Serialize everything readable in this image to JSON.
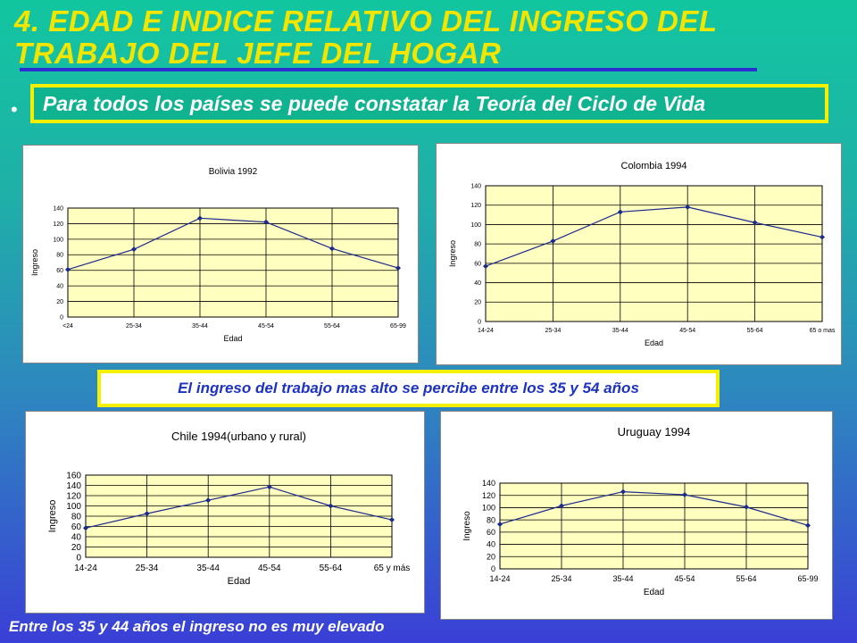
{
  "slide": {
    "title": "4. EDAD E INDICE RELATIVO DEL INGRESO DEL TRABAJO DEL JEFE DEL HOGAR",
    "bullet": "•",
    "banner": "Para todos los países se puede constatar la Teoría del Ciclo de Vida",
    "callout": "El  ingreso del trabajo mas alto se percibe entre los 35 y 54 años",
    "footer": "Entre los 35 y 44 años el ingreso no es muy elevado"
  },
  "chart_data": [
    {
      "type": "line",
      "title": "Bolivia 1992",
      "xlabel": "Edad",
      "ylabel": "Ingreso",
      "categories": [
        "<24",
        "25-34",
        "35-44",
        "45-54",
        "55-64",
        "65-99"
      ],
      "values": [
        61,
        87,
        127,
        122,
        88,
        63
      ],
      "ylim": [
        0,
        140
      ],
      "yticks": [
        0,
        20,
        40,
        60,
        80,
        100,
        120,
        140
      ],
      "grid": true
    },
    {
      "type": "line",
      "title": "Colombia 1994",
      "xlabel": "Edad",
      "ylabel": "Ingreso",
      "categories": [
        "14-24",
        "25-34",
        "35-44",
        "45-54",
        "55-64",
        "65 o mas"
      ],
      "values": [
        57,
        83,
        113,
        118,
        102,
        87
      ],
      "ylim": [
        0,
        140
      ],
      "yticks": [
        0,
        20,
        40,
        60,
        80,
        100,
        120,
        140
      ],
      "grid": true
    },
    {
      "type": "line",
      "title": "Chile 1994(urbano y rural)",
      "xlabel": "Edad",
      "ylabel": "Ingreso",
      "categories": [
        "14-24",
        "25-34",
        "35-44",
        "45-54",
        "55-64",
        "65 y más"
      ],
      "values": [
        57,
        85,
        111,
        137,
        100,
        73
      ],
      "ylim": [
        0,
        160
      ],
      "yticks": [
        0,
        20,
        40,
        60,
        80,
        100,
        120,
        140,
        160
      ],
      "grid": true
    },
    {
      "type": "line",
      "title": "Uruguay 1994",
      "xlabel": "Edad",
      "ylabel": "Ingreso",
      "categories": [
        "14-24",
        "25-34",
        "35-44",
        "45-54",
        "55-64",
        "65-99"
      ],
      "values": [
        73,
        103,
        126,
        121,
        101,
        71
      ],
      "ylim": [
        0,
        140
      ],
      "yticks": [
        0,
        20,
        40,
        60,
        80,
        100,
        120,
        140
      ],
      "grid": true
    }
  ],
  "colors": {
    "plot_bg": "#ffffc0",
    "series": "#1c2a8c",
    "accent": "#f5f000"
  }
}
